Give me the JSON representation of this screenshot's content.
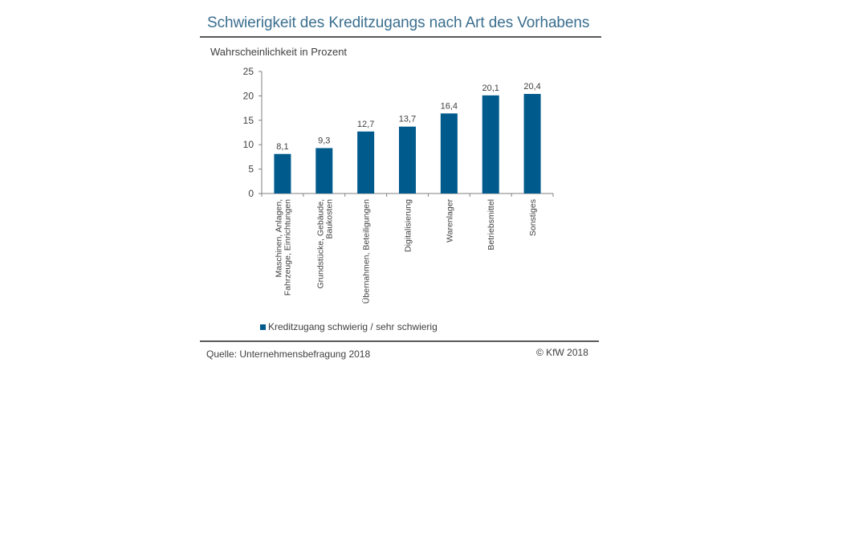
{
  "chart_data": {
    "type": "bar",
    "title": "Schwierigkeit des Kreditzugangs nach Art des Vorhabens",
    "ylabel": "Wahrscheinlichkeit in Prozent",
    "xlabel": "",
    "ylim": [
      0,
      25
    ],
    "yticks": [
      "0",
      "5",
      "10",
      "15",
      "20",
      "25"
    ],
    "grid": false,
    "legend_position": "bottom",
    "categories": [
      [
        "Maschinen, Anlagen,",
        "Fahrzeuge, Einrichtungen"
      ],
      [
        "Grundstücke, Gebäude,",
        "Baukosten"
      ],
      [
        "Übernahmen, Beteiligungen"
      ],
      [
        "Digitalisierung"
      ],
      [
        "Warenlager"
      ],
      [
        "Betriebsmittel"
      ],
      [
        "Sonstiges"
      ]
    ],
    "series": [
      {
        "name": "Kreditzugang schwierig / sehr schwierig",
        "values": [
          8.1,
          9.3,
          12.7,
          13.7,
          16.4,
          20.1,
          20.4
        ],
        "labels": [
          "8,1",
          "9,3",
          "12,7",
          "13,7",
          "16,4",
          "20,1",
          "20,4"
        ],
        "color": "#005a8c"
      }
    ]
  },
  "footer": {
    "source": "Quelle: Unternehmensbefragung 2018",
    "copyright": "© KfW 2018"
  },
  "colors": {
    "bar": "#005a8c",
    "title": "#3a6f8f",
    "text": "#404040",
    "rule": "#595959"
  }
}
